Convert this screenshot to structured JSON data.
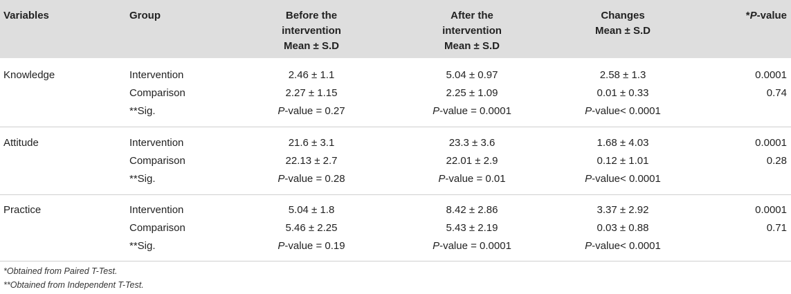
{
  "headers": {
    "variables": "Variables",
    "group": "Group",
    "before": [
      "Before the",
      "intervention",
      "Mean ± S.D"
    ],
    "after": [
      "After the",
      "intervention",
      "Mean ± S.D"
    ],
    "changes": [
      "Changes",
      "Mean ± S.D"
    ],
    "pvalue_prefix": "*",
    "pvalue_italic": "P",
    "pvalue_suffix": "-value"
  },
  "sections": [
    {
      "variable": "Knowledge",
      "rows": [
        {
          "group": "Intervention",
          "before": "2.46 ± 1.1",
          "after": "5.04 ± 0.97",
          "changes": "2.58 ± 1.3",
          "p": "0.0001"
        },
        {
          "group": "Comparison",
          "before": "2.27 ± 1.15",
          "after": "2.25 ± 1.09",
          "changes": "0.01 ± 0.33",
          "p": "0.74"
        }
      ],
      "sig": {
        "label": "**Sig.",
        "before": "-value = 0.27",
        "after": "-value = 0.0001",
        "changes": "-value< 0.0001"
      }
    },
    {
      "variable": "Attitude",
      "rows": [
        {
          "group": "Intervention",
          "before": "21.6 ± 3.1",
          "after": "23.3 ± 3.6",
          "changes": "1.68 ± 4.03",
          "p": "0.0001"
        },
        {
          "group": "Comparison",
          "before": "22.13 ± 2.7",
          "after": "22.01 ± 2.9",
          "changes": "0.12 ± 1.01",
          "p": "0.28"
        }
      ],
      "sig": {
        "label": "**Sig.",
        "before": "-value = 0.28",
        "after": "-value = 0.01",
        "changes": "-value< 0.0001"
      }
    },
    {
      "variable": "Practice",
      "rows": [
        {
          "group": "Intervention",
          "before": "5.04 ± 1.8",
          "after": "8.42 ± 2.86",
          "changes": "3.37 ± 2.92",
          "p": "0.0001"
        },
        {
          "group": "Comparison",
          "before": "5.46 ± 2.25",
          "after": "5.43 ± 2.19",
          "changes": "0.03 ± 0.88",
          "p": "0.71"
        }
      ],
      "sig": {
        "label": "**Sig.",
        "before": "-value = 0.19",
        "after": "-value = 0.0001",
        "changes": "-value< 0.0001"
      }
    }
  ],
  "p_italic": "P",
  "footnotes": [
    "*Obtained from Paired T-Test.",
    "**Obtained from Independent T-Test."
  ]
}
